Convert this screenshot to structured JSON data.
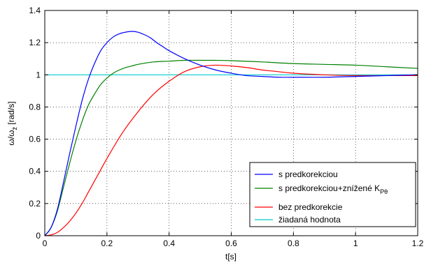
{
  "chart_data": {
    "type": "line",
    "xlabel": "t[s]",
    "ylabel": {
      "prefix": "ω/ω",
      "subscript": "ž",
      "suffix": " [rad/s]"
    },
    "xlim": [
      0,
      1.2
    ],
    "ylim": [
      0,
      1.4
    ],
    "x_ticks": [
      "0",
      "0.2",
      "0.4",
      "0.6",
      "0.8",
      "1",
      "1.2"
    ],
    "y_ticks": [
      "0",
      "0.2",
      "0.4",
      "0.6",
      "0.8",
      "1",
      "1.2",
      "1.4"
    ],
    "grid": true,
    "legend_position": "bottom-right",
    "series": [
      {
        "name": "s predkorekciou",
        "color": "#0000ff",
        "x": [
          0,
          0.02,
          0.04,
          0.06,
          0.08,
          0.1,
          0.12,
          0.14,
          0.16,
          0.18,
          0.2,
          0.22,
          0.24,
          0.26,
          0.28,
          0.3,
          0.32,
          0.34,
          0.36,
          0.38,
          0.4,
          0.45,
          0.5,
          0.55,
          0.6,
          0.65,
          0.7,
          0.75,
          0.8,
          0.9,
          1.0,
          1.1,
          1.2
        ],
        "y": [
          0,
          0.05,
          0.16,
          0.33,
          0.51,
          0.68,
          0.84,
          0.97,
          1.07,
          1.15,
          1.2,
          1.235,
          1.255,
          1.265,
          1.27,
          1.265,
          1.25,
          1.23,
          1.2,
          1.175,
          1.15,
          1.1,
          1.06,
          1.03,
          1.01,
          0.995,
          0.99,
          0.985,
          0.985,
          0.985,
          0.99,
          0.995,
          1.0
        ]
      },
      {
        "name": "s predkorekciou+znížené K",
        "name_subscript": "Pθ",
        "color": "#008000",
        "x": [
          0,
          0.02,
          0.04,
          0.06,
          0.08,
          0.1,
          0.12,
          0.14,
          0.16,
          0.18,
          0.2,
          0.22,
          0.24,
          0.26,
          0.28,
          0.3,
          0.35,
          0.4,
          0.45,
          0.5,
          0.55,
          0.6,
          0.7,
          0.8,
          0.9,
          1.0,
          1.1,
          1.2
        ],
        "y": [
          0,
          0.05,
          0.15,
          0.3,
          0.45,
          0.59,
          0.71,
          0.81,
          0.88,
          0.94,
          0.98,
          1.01,
          1.03,
          1.045,
          1.055,
          1.065,
          1.08,
          1.085,
          1.09,
          1.09,
          1.09,
          1.088,
          1.08,
          1.07,
          1.065,
          1.06,
          1.05,
          1.04
        ]
      },
      {
        "name": "bez predkorekcie",
        "color": "#ff0000",
        "x": [
          0,
          0.02,
          0.04,
          0.06,
          0.08,
          0.1,
          0.12,
          0.14,
          0.16,
          0.18,
          0.2,
          0.25,
          0.3,
          0.35,
          0.4,
          0.45,
          0.5,
          0.55,
          0.6,
          0.65,
          0.7,
          0.75,
          0.8,
          0.9,
          1.0,
          1.1,
          1.2
        ],
        "y": [
          0,
          0.005,
          0.02,
          0.05,
          0.09,
          0.14,
          0.2,
          0.27,
          0.34,
          0.41,
          0.48,
          0.64,
          0.77,
          0.88,
          0.96,
          1.02,
          1.05,
          1.06,
          1.055,
          1.045,
          1.03,
          1.02,
          1.01,
          1.0,
          0.995,
          0.995,
          0.995
        ]
      },
      {
        "name": "žiadaná hodnota",
        "color": "#00cccc",
        "x": [
          0,
          1.2
        ],
        "y": [
          1,
          1
        ]
      }
    ]
  }
}
